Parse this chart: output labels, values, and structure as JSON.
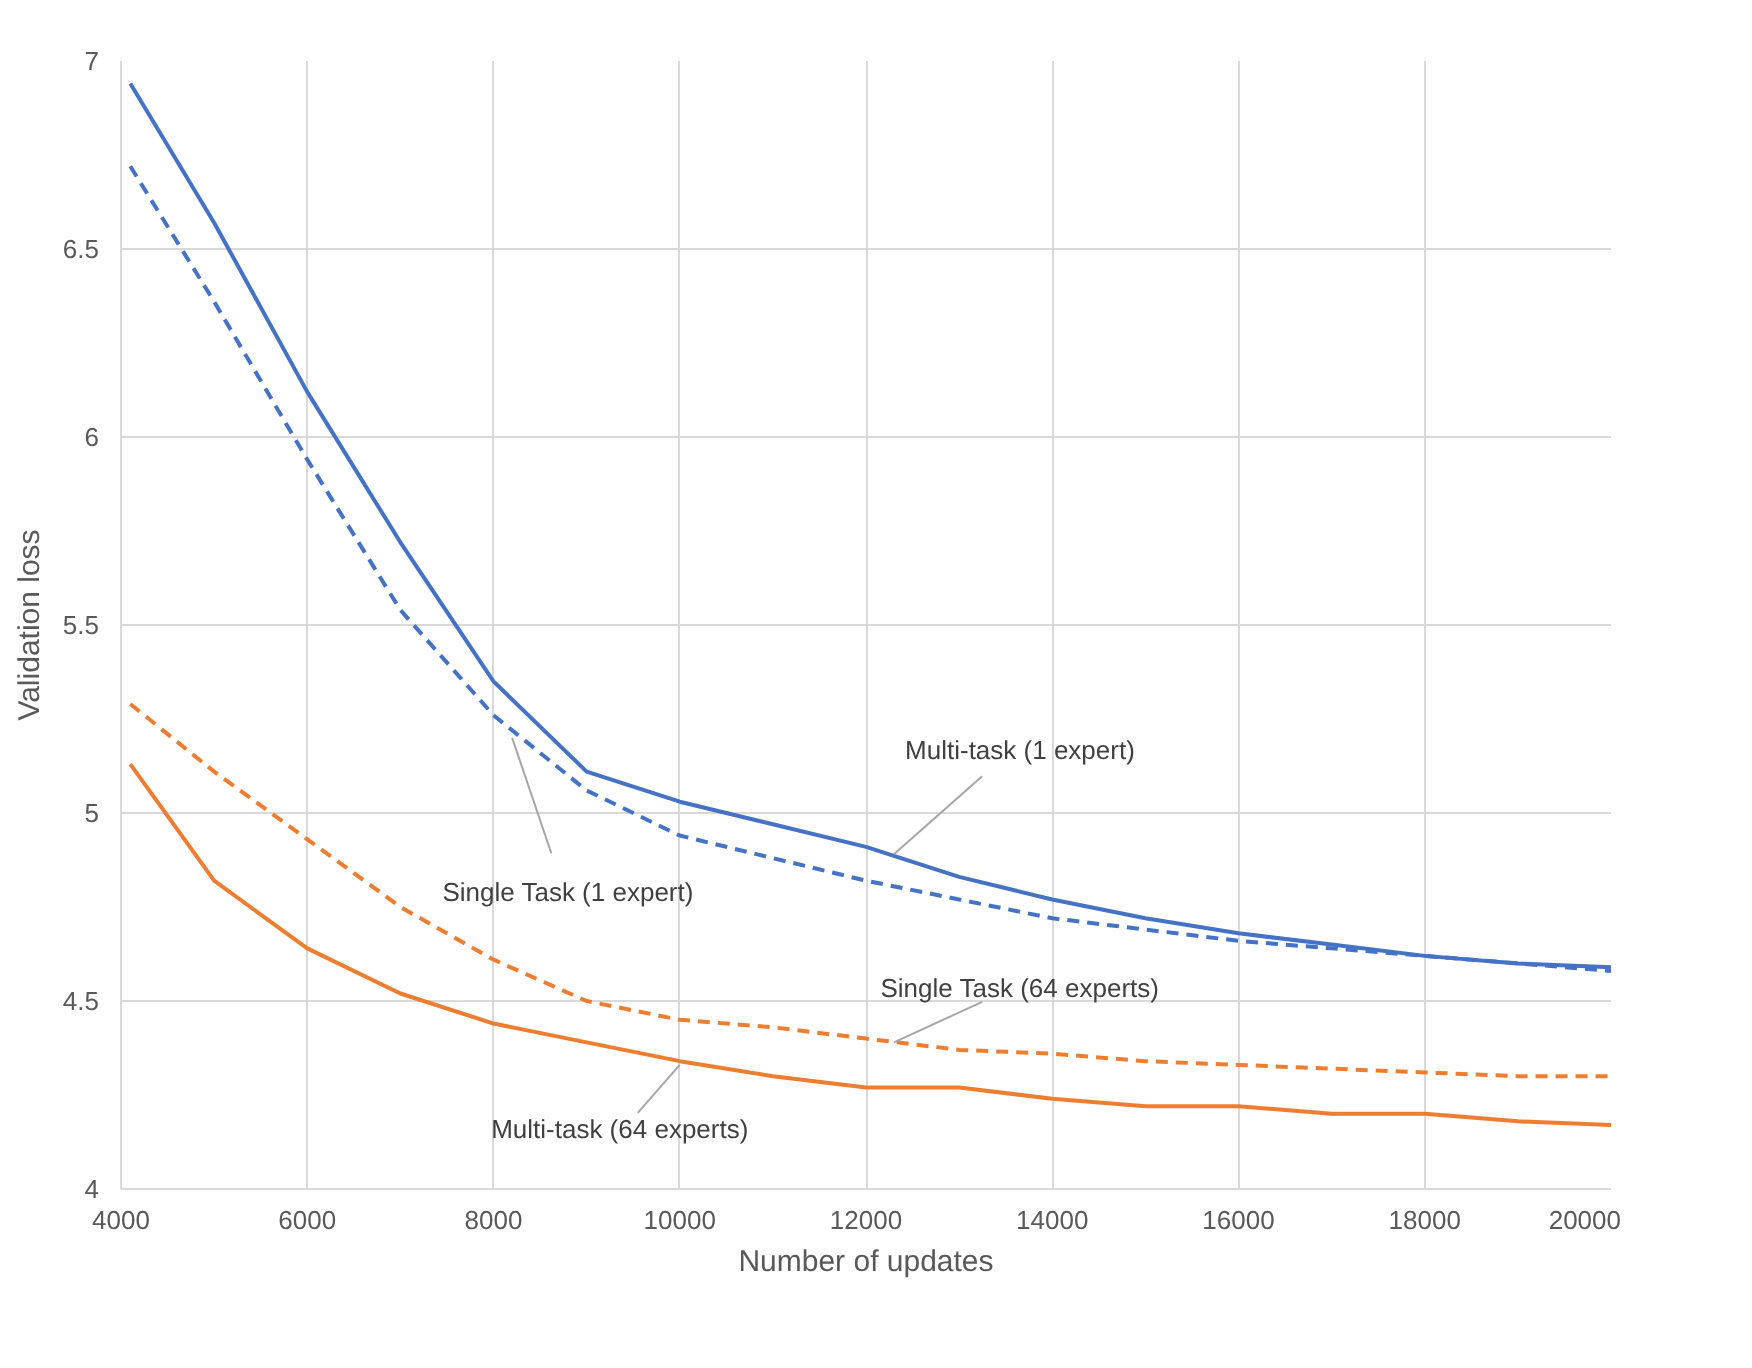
{
  "chart_data": {
    "type": "line",
    "xlabel": "Number of updates",
    "ylabel": "Validation loss",
    "xlim": [
      4000,
      20000
    ],
    "ylim": [
      4,
      7
    ],
    "xticks": [
      4000,
      6000,
      8000,
      10000,
      12000,
      14000,
      16000,
      18000,
      20000
    ],
    "yticks": [
      4,
      4.5,
      5,
      5.5,
      6,
      6.5,
      7
    ],
    "grid": true,
    "series": [
      {
        "color": "#4472c4",
        "line_style": "solid",
        "x": [
          4100,
          5000,
          6000,
          7000,
          8000,
          9000,
          10000,
          11000,
          12000,
          13000,
          14000,
          15000,
          16000,
          17000,
          18000,
          19000,
          20000
        ],
        "values": [
          6.94,
          6.57,
          6.12,
          5.72,
          5.35,
          5.11,
          5.03,
          4.97,
          4.91,
          4.83,
          4.77,
          4.72,
          4.68,
          4.65,
          4.62,
          4.6,
          4.59
        ]
      },
      {
        "color": "#4472c4",
        "line_style": "dashed",
        "x": [
          4100,
          5000,
          6000,
          7000,
          8000,
          9000,
          10000,
          11000,
          12000,
          13000,
          14000,
          15000,
          16000,
          17000,
          18000,
          19000,
          20000
        ],
        "values": [
          6.72,
          6.36,
          5.94,
          5.54,
          5.26,
          5.06,
          4.94,
          4.88,
          4.82,
          4.77,
          4.72,
          4.69,
          4.66,
          4.64,
          4.62,
          4.6,
          4.58
        ]
      },
      {
        "color": "#ed7d31",
        "line_style": "dashed",
        "x": [
          4100,
          5000,
          6000,
          7000,
          8000,
          9000,
          10000,
          11000,
          12000,
          13000,
          14000,
          15000,
          16000,
          17000,
          18000,
          19000,
          20000
        ],
        "values": [
          5.29,
          5.11,
          4.93,
          4.75,
          4.61,
          4.5,
          4.45,
          4.43,
          4.4,
          4.37,
          4.36,
          4.34,
          4.33,
          4.32,
          4.31,
          4.3,
          4.3
        ]
      },
      {
        "color": "#ed7d31",
        "line_style": "solid",
        "x": [
          4100,
          5000,
          6000,
          7000,
          8000,
          9000,
          10000,
          11000,
          12000,
          13000,
          14000,
          15000,
          16000,
          17000,
          18000,
          19000,
          20000
        ],
        "values": [
          5.13,
          4.82,
          4.64,
          4.52,
          4.44,
          4.39,
          4.34,
          4.3,
          4.27,
          4.27,
          4.24,
          4.22,
          4.22,
          4.2,
          4.2,
          4.18,
          4.17
        ]
      }
    ],
    "annotations": [
      {
        "text": "Multi-task (1 expert)",
        "x": 12300,
        "y": 4.89
      },
      {
        "text": "Single Task (1 expert)",
        "x": 8200,
        "y": 5.2
      },
      {
        "text": "Single Task (64 experts)",
        "x": 12300,
        "y": 4.39
      },
      {
        "text": "Multi-task (64 experts)",
        "x": 10000,
        "y": 4.33
      }
    ]
  }
}
